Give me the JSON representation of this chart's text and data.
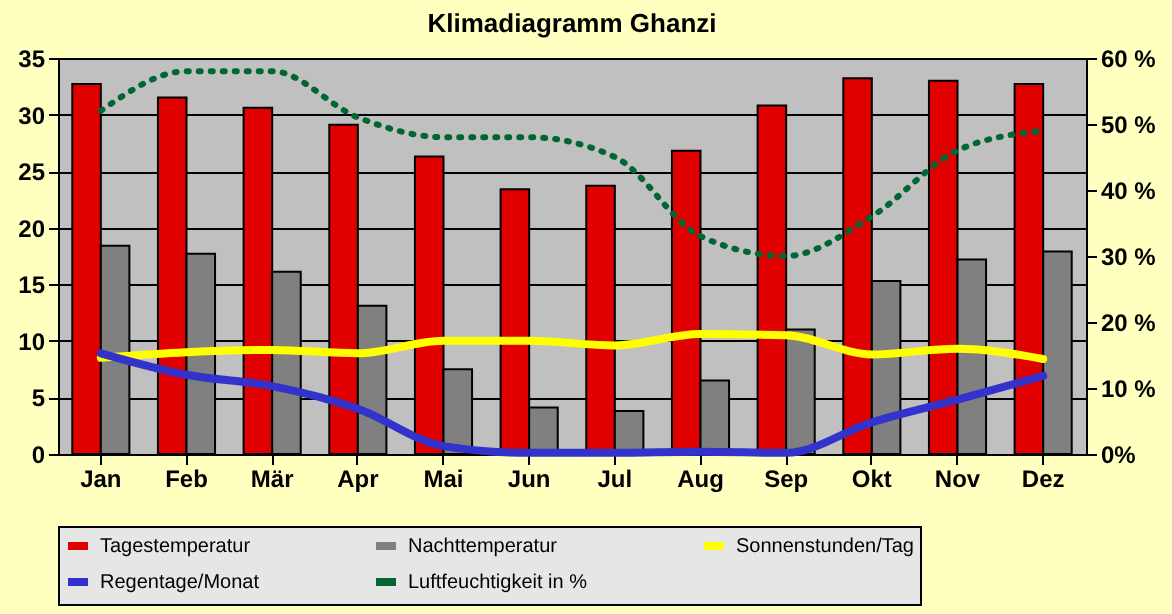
{
  "chart_data": {
    "type": "bar",
    "title": "Klimadiagramm Ghanzi",
    "categories": [
      "Jan",
      "Feb",
      "Mär",
      "Apr",
      "Mai",
      "Jun",
      "Jul",
      "Aug",
      "Sep",
      "Okt",
      "Nov",
      "Dez"
    ],
    "series": [
      {
        "name": "Tagestemperatur",
        "color": "#e00000",
        "values": [
          32.7,
          31.5,
          30.6,
          29.1,
          26.3,
          23.4,
          23.7,
          26.8,
          30.8,
          33.2,
          33.0,
          32.7
        ]
      },
      {
        "name": "Nachttemperatur",
        "color": "#808080",
        "values": [
          18.4,
          17.7,
          16.1,
          13.1,
          7.5,
          4.1,
          3.8,
          6.5,
          11.0,
          15.3,
          17.2,
          17.9
        ]
      },
      {
        "name": "Sonnenstunden/Tag",
        "type": "line",
        "color": "#ffff00",
        "values": [
          8.5,
          9.0,
          9.2,
          8.9,
          10.0,
          10.0,
          9.6,
          10.6,
          10.5,
          8.8,
          9.3,
          8.4
        ]
      },
      {
        "name": "Regentage/Monat",
        "type": "line",
        "color": "#3333cc",
        "values": [
          8.9,
          7.0,
          6.0,
          4.0,
          0.7,
          0.1,
          0.1,
          0.2,
          0.1,
          2.8,
          4.8,
          6.9
        ]
      },
      {
        "name": "Luftfeuchtigkeit in %",
        "type": "line",
        "axis": "y2",
        "line_style": "dotted",
        "color": "#006633",
        "values": [
          52,
          58,
          58,
          51,
          48,
          48,
          45,
          33,
          30,
          36,
          46,
          49
        ]
      }
    ],
    "ylim": [
      0,
      35
    ],
    "yticks": [
      0,
      5,
      10,
      15,
      20,
      25,
      30,
      35
    ],
    "y2lim": [
      0,
      60
    ],
    "y2ticks": [
      {
        "value": 0,
        "label": "0%"
      },
      {
        "value": 10,
        "label": "10 %"
      },
      {
        "value": 20,
        "label": "20 %"
      },
      {
        "value": 30,
        "label": "30 %"
      },
      {
        "value": 40,
        "label": "40 %"
      },
      {
        "value": 50,
        "label": "50 %"
      },
      {
        "value": 60,
        "label": "60 %"
      }
    ],
    "grid": "y",
    "legend": "bottom",
    "marker": "none"
  }
}
